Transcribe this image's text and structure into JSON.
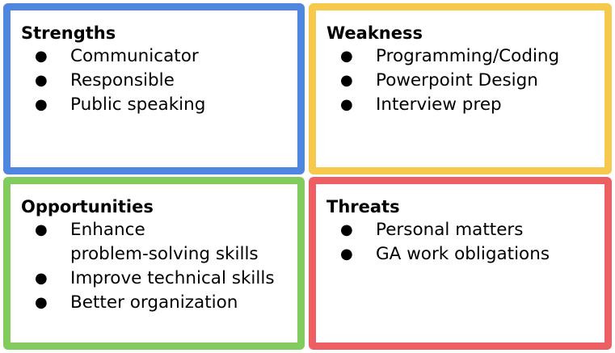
{
  "colors": {
    "strengths": "#4e86e0",
    "weakness": "#f6c84b",
    "opportunities": "#82cb5d",
    "threats": "#ee5f64"
  },
  "bullet_symbol": "●",
  "quadrants": {
    "strengths": {
      "title": "Strengths",
      "items": [
        "Communicator",
        "Responsible",
        "Public speaking"
      ]
    },
    "weakness": {
      "title": "Weakness",
      "items": [
        "Programming/Coding",
        "Powerpoint Design",
        "Interview prep"
      ]
    },
    "opportunities": {
      "title": "Opportunities",
      "items": [
        [
          "Enhance",
          "problem-solving skills"
        ],
        "Improve technical skills",
        "Better organization"
      ]
    },
    "threats": {
      "title": "Threats",
      "items": [
        "Personal matters",
        "GA work obligations"
      ]
    }
  }
}
